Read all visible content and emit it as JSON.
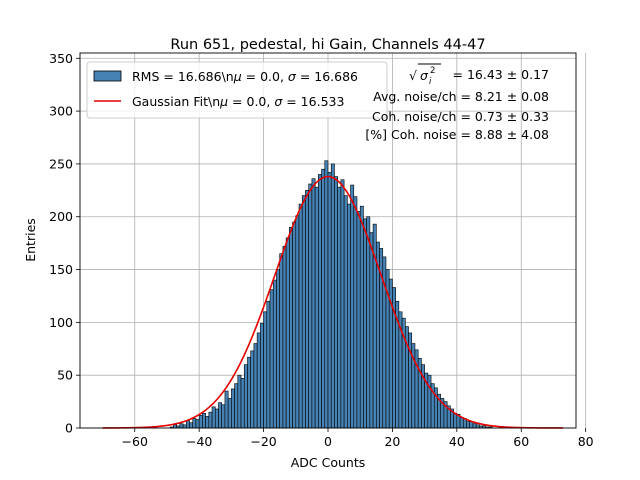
{
  "chart_data": {
    "type": "histogram",
    "title": "Run 651, pedestal, hi Gain, Channels 44-47",
    "xlabel": "ADC Counts",
    "ylabel": "Entries",
    "xlim": [
      -77,
      77
    ],
    "ylim": [
      0,
      355
    ],
    "xticks": [
      -60,
      -40,
      -20,
      0,
      20,
      40,
      60,
      80
    ],
    "yticks": [
      0,
      50,
      100,
      150,
      200,
      250,
      300,
      350
    ],
    "xtick_labels": [
      "−60",
      "−40",
      "−20",
      "0",
      "20",
      "40",
      "60",
      "80"
    ],
    "ytick_labels": [
      "0",
      "50",
      "100",
      "150",
      "200",
      "250",
      "300",
      "350"
    ],
    "grid": true,
    "bin_width": 1,
    "bin_start": -70,
    "hist_values": [
      0,
      0,
      0,
      0,
      0,
      0,
      0,
      0,
      0,
      0,
      0,
      0,
      0,
      0,
      0,
      0,
      0,
      0,
      0,
      0,
      0,
      1,
      3,
      2,
      4,
      3,
      7,
      5,
      9,
      8,
      12,
      14,
      11,
      15,
      20,
      18,
      24,
      22,
      35,
      28,
      37,
      42,
      50,
      47,
      60,
      67,
      73,
      80,
      90,
      99,
      110,
      120,
      131,
      140,
      150,
      165,
      172,
      180,
      190,
      195,
      201,
      212,
      220,
      225,
      231,
      236,
      228,
      240,
      245,
      253,
      242,
      250,
      238,
      228,
      235,
      220,
      212,
      230,
      219,
      205,
      210,
      198,
      200,
      185,
      193,
      176,
      170,
      162,
      150,
      141,
      133,
      120,
      110,
      104,
      96,
      90,
      80,
      74,
      66,
      60,
      52,
      50,
      42,
      38,
      32,
      28,
      25,
      21,
      18,
      14,
      13,
      10,
      9,
      6,
      6,
      4,
      3,
      2,
      2,
      1,
      1,
      0,
      0,
      0,
      0,
      0,
      0,
      0,
      0,
      0,
      0,
      0,
      0,
      0,
      0,
      0,
      0,
      0,
      0,
      0,
      0,
      0,
      0,
      0,
      0,
      0
    ],
    "series": [
      {
        "name": "RMS = 16.686\\nμ = 0.0, σ = 16.686",
        "kind": "histogram",
        "color": "#4682b4",
        "edge": "#000000"
      },
      {
        "name": "Gaussian Fit\\nμ = 0.0, σ = 16.533",
        "kind": "line",
        "color": "#e60000",
        "fit": {
          "amplitude": 238,
          "mu": 0.0,
          "sigma": 16.533,
          "x_range": [
            -70,
            73
          ]
        }
      }
    ],
    "legend": {
      "position": "top-left",
      "entries": [
        {
          "label_pre": "RMS = 16.686\\n",
          "label_post": " = 0.0, ",
          "label_end": " = 16.686",
          "swatch": "patch"
        },
        {
          "label_pre": "Gaussian Fit\\n",
          "label_post": " = 0.0, ",
          "label_end": " = 16.533",
          "swatch": "line"
        }
      ],
      "mu_symbol": "μ",
      "sigma_symbol": "σ"
    },
    "annotations": {
      "line1_value": " = 16.43 ± 0.17",
      "line2": "Avg. noise/ch = 8.21 ± 0.08",
      "line3": "Coh. noise/ch = 0.73 ± 0.33",
      "line4": "[%] Coh. noise = 8.88 ± 4.08"
    }
  },
  "colors": {
    "bar_fill": "#4682b4",
    "bar_edge": "#000000",
    "fit_line": "#e60000",
    "grid": "#b0b0b0"
  }
}
